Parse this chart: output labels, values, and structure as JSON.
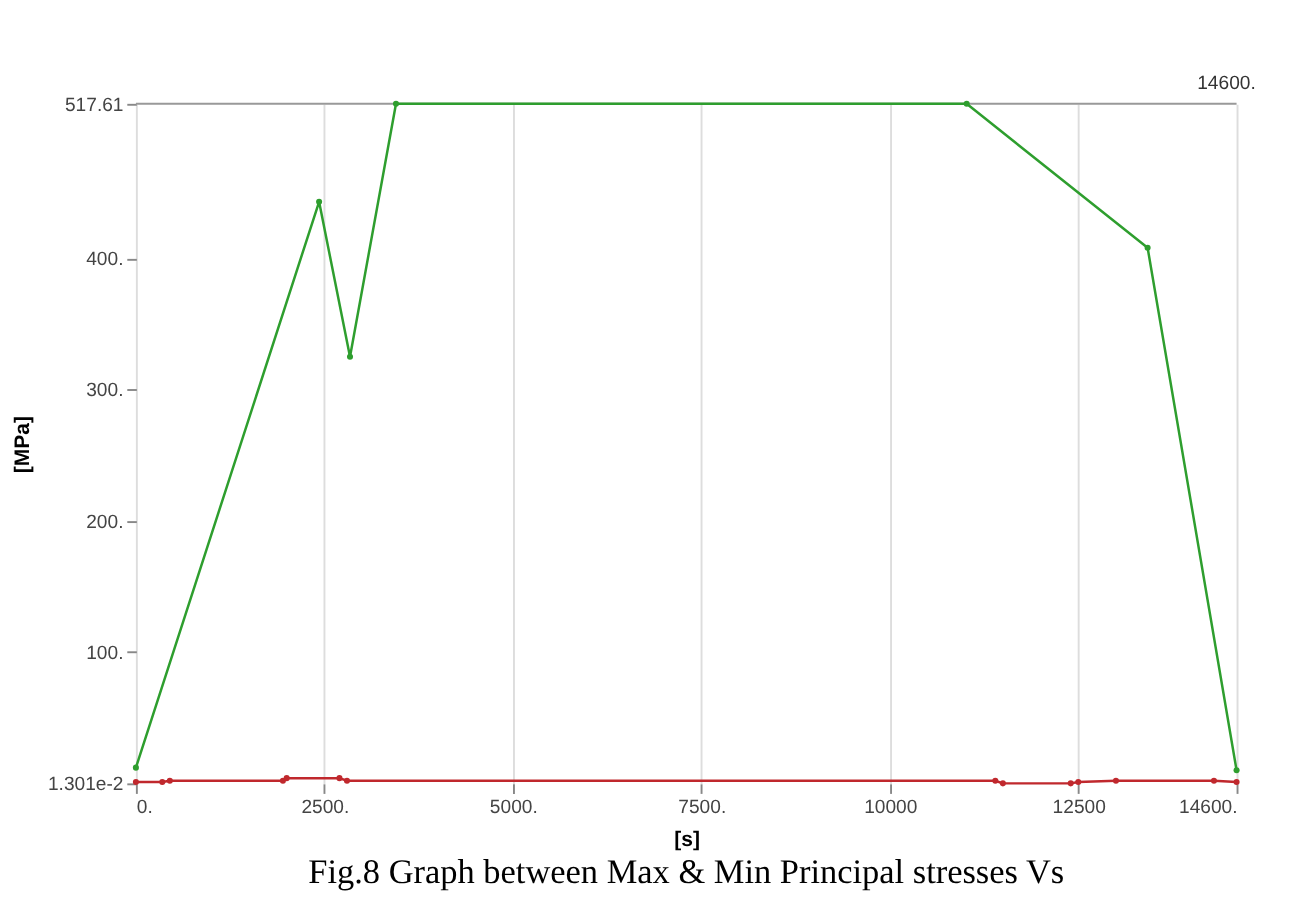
{
  "chart_data": {
    "type": "line",
    "xlabel": "[s]",
    "ylabel": "[MPa]",
    "annotations": [
      "14600.",
      "Fig.8 Graph between Max & Min Principal stresses Vs"
    ],
    "series": [
      {
        "color": "#2e9e2e",
        "x": [
          0,
          2430,
          2840,
          3450,
          11020,
          13420,
          14600
        ],
        "values": [
          12,
          443,
          325,
          517.61,
          517.61,
          408,
          10
        ]
      },
      {
        "color": "#c0282d",
        "x": [
          0,
          350,
          450,
          1950,
          2000,
          2700,
          2800,
          11400,
          11500,
          12400,
          12500,
          13000,
          14300,
          14600
        ],
        "values": [
          1,
          1,
          2,
          2,
          4,
          4,
          2,
          2,
          0.01301,
          0.01301,
          1,
          2,
          2,
          1
        ]
      }
    ],
    "xlim": [
      0,
      14600
    ],
    "ylim": [
      0.01301,
      517.61
    ],
    "xticks": [
      {
        "value": 0,
        "label": "0."
      },
      {
        "value": 2500,
        "label": "2500."
      },
      {
        "value": 5000,
        "label": "5000."
      },
      {
        "value": 7500,
        "label": "7500."
      },
      10000,
      12500,
      {
        "value": 14600,
        "label": "14600."
      }
    ],
    "yticks": [
      {
        "value": 0.01301,
        "label": "1.301e-2"
      },
      {
        "value": 100,
        "label": "100."
      },
      {
        "value": 200,
        "label": "200."
      },
      {
        "value": 300,
        "label": "300."
      },
      {
        "value": 400,
        "label": "400."
      },
      517.61
    ],
    "grid": "x",
    "legend": false,
    "marker": "circle",
    "line_style": "solid"
  }
}
